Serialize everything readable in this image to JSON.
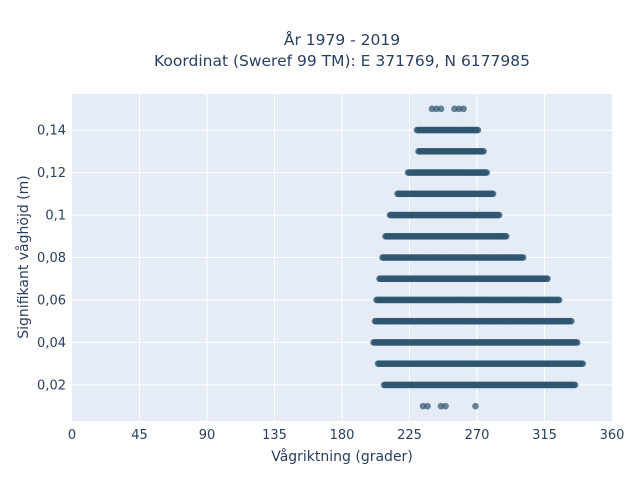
{
  "chart_data": {
    "type": "scatter",
    "title_line1": "År 1979 - 2019",
    "title_line2": "Koordinat (Sweref 99 TM): E 371769, N 6177985",
    "xlabel": "Vågriktning (grader)",
    "ylabel": "Signifikant våghöjd (m)",
    "xlim": [
      0,
      360
    ],
    "ylim": [
      0.003,
      0.157
    ],
    "xticks": [
      0,
      45,
      90,
      135,
      180,
      225,
      270,
      315,
      360
    ],
    "yticks": [
      {
        "value": 0.02,
        "label": "0,02"
      },
      {
        "value": 0.04,
        "label": "0,04"
      },
      {
        "value": 0.06,
        "label": "0,06"
      },
      {
        "value": 0.08,
        "label": "0,08"
      },
      {
        "value": 0.1,
        "label": "0,1"
      },
      {
        "value": 0.12,
        "label": "0,12"
      },
      {
        "value": 0.14,
        "label": "0,14"
      }
    ],
    "grid": true,
    "marker_color": "#2f5670",
    "bands": [
      {
        "y": 0.01,
        "x_min": 234,
        "x_max": 249,
        "sparse": true,
        "extra_x": [
          269
        ]
      },
      {
        "y": 0.02,
        "x_min": 208,
        "x_max": 336
      },
      {
        "y": 0.03,
        "x_min": 204,
        "x_max": 341
      },
      {
        "y": 0.04,
        "x_min": 201,
        "x_max": 337
      },
      {
        "y": 0.05,
        "x_min": 202,
        "x_max": 333
      },
      {
        "y": 0.06,
        "x_min": 203,
        "x_max": 325
      },
      {
        "y": 0.07,
        "x_min": 205,
        "x_max": 317
      },
      {
        "y": 0.08,
        "x_min": 207,
        "x_max": 301
      },
      {
        "y": 0.09,
        "x_min": 209,
        "x_max": 290
      },
      {
        "y": 0.1,
        "x_min": 212,
        "x_max": 285
      },
      {
        "y": 0.11,
        "x_min": 217,
        "x_max": 281
      },
      {
        "y": 0.12,
        "x_min": 224,
        "x_max": 277
      },
      {
        "y": 0.13,
        "x_min": 231,
        "x_max": 275
      },
      {
        "y": 0.14,
        "x_min": 230,
        "x_max": 271
      },
      {
        "y": 0.15,
        "x_min": 237,
        "x_max": 262,
        "sparse": true
      }
    ]
  }
}
